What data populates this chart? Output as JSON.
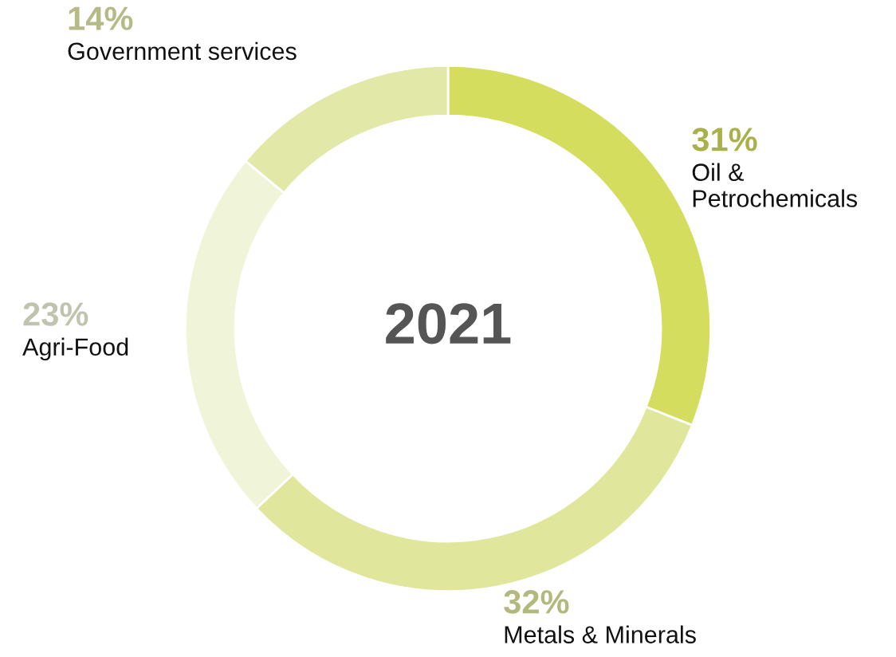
{
  "chart_data": {
    "type": "donut",
    "title": "2021",
    "categories": [
      "Oil &\nPetrochemicals",
      "Metals & Minerals",
      "Agri-Food",
      "Government services"
    ],
    "values": [
      31,
      32,
      23,
      14
    ],
    "value_labels": [
      "31%",
      "32%",
      "23%",
      "14%"
    ],
    "colors": [
      "#d4dd5e",
      "#e0e79c",
      "#f0f4d8",
      "#e2e8a8"
    ],
    "legend": false
  }
}
